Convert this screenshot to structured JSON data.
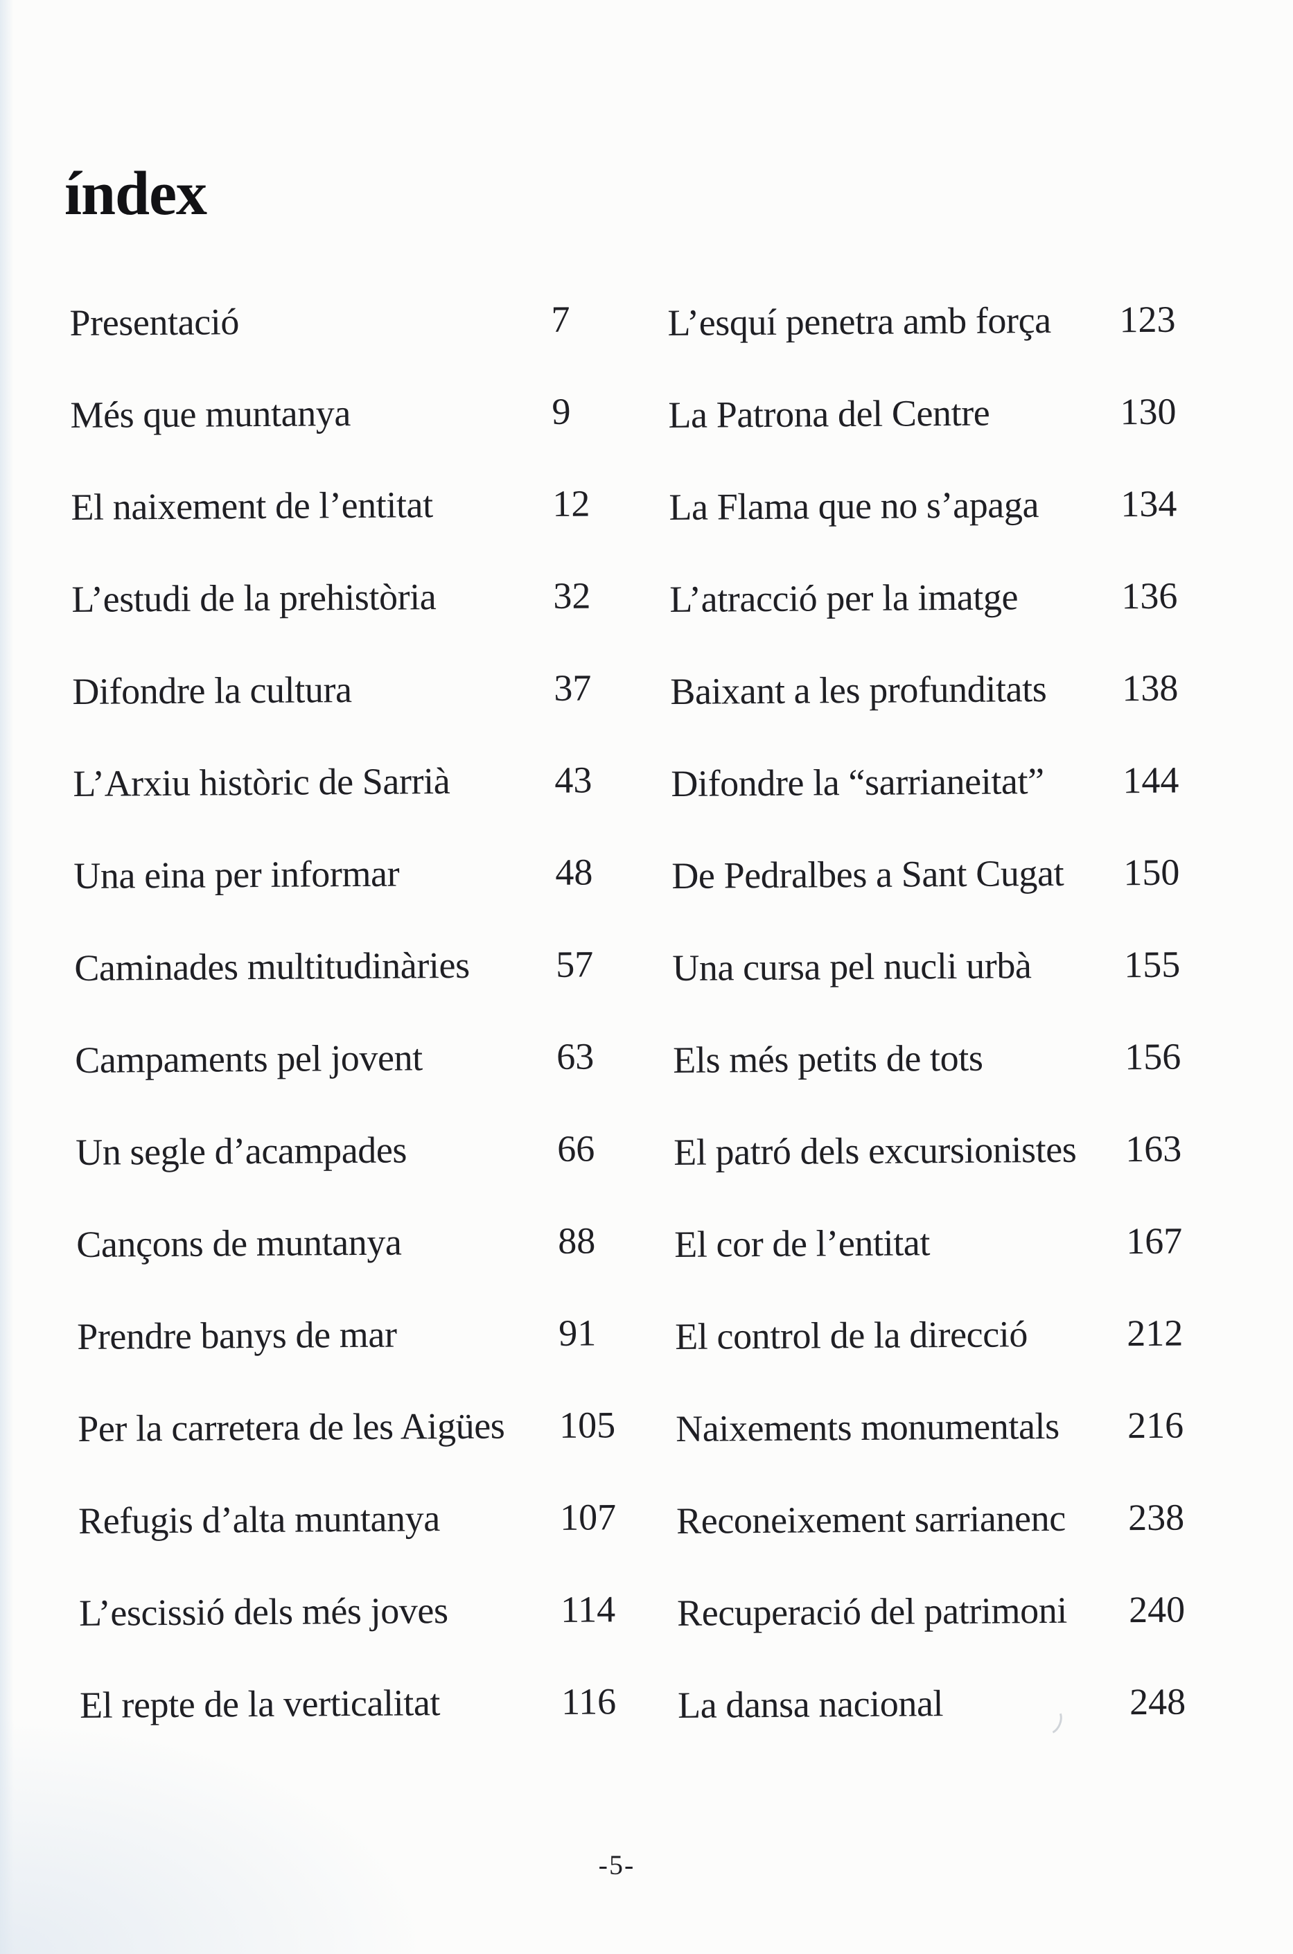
{
  "page": {
    "title": "índex",
    "page_number": "-5-"
  },
  "toc": {
    "left": [
      {
        "label": "Presentació",
        "page": "7"
      },
      {
        "label": "Més que muntanya",
        "page": "9"
      },
      {
        "label": "El naixement de l’entitat",
        "page": "12"
      },
      {
        "label": "L’estudi de la prehistòria",
        "page": "32"
      },
      {
        "label": "Difondre la cultura",
        "page": "37"
      },
      {
        "label": "L’Arxiu històric de Sarrià",
        "page": "43"
      },
      {
        "label": "Una eina per informar",
        "page": "48"
      },
      {
        "label": "Caminades multitudinàries",
        "page": "57"
      },
      {
        "label": "Campaments pel jovent",
        "page": "63"
      },
      {
        "label": "Un segle d’acampades",
        "page": "66"
      },
      {
        "label": "Cançons de muntanya",
        "page": "88"
      },
      {
        "label": "Prendre banys de mar",
        "page": "91"
      },
      {
        "label": "Per la carretera de les Aigües",
        "page": "105"
      },
      {
        "label": "Refugis d’alta muntanya",
        "page": "107"
      },
      {
        "label": "L’escissió dels més joves",
        "page": "114"
      },
      {
        "label": "El repte de la verticalitat",
        "page": "116"
      }
    ],
    "right": [
      {
        "label": "L’esquí penetra amb força",
        "page": "123"
      },
      {
        "label": "La Patrona del Centre",
        "page": "130"
      },
      {
        "label": "La Flama que no s’apaga",
        "page": "134"
      },
      {
        "label": "L’atracció per la imatge",
        "page": "136"
      },
      {
        "label": "Baixant a les profunditats",
        "page": "138"
      },
      {
        "label": "Difondre la “sarrianeitat”",
        "page": "144"
      },
      {
        "label": "De Pedralbes a Sant Cugat",
        "page": "150"
      },
      {
        "label": "Una cursa pel nucli urbà",
        "page": "155"
      },
      {
        "label": "Els més petits de tots",
        "page": "156"
      },
      {
        "label": "El patró dels excursionistes",
        "page": "163"
      },
      {
        "label": "El cor de l’entitat",
        "page": "167"
      },
      {
        "label": "El control de la direcció",
        "page": "212"
      },
      {
        "label": "Naixements monumentals",
        "page": "216"
      },
      {
        "label": "Reconeixement sarrianenc",
        "page": "238"
      },
      {
        "label": "Recuperació del patrimoni",
        "page": "240"
      },
      {
        "label": "La dansa nacional",
        "page": "248"
      }
    ]
  }
}
